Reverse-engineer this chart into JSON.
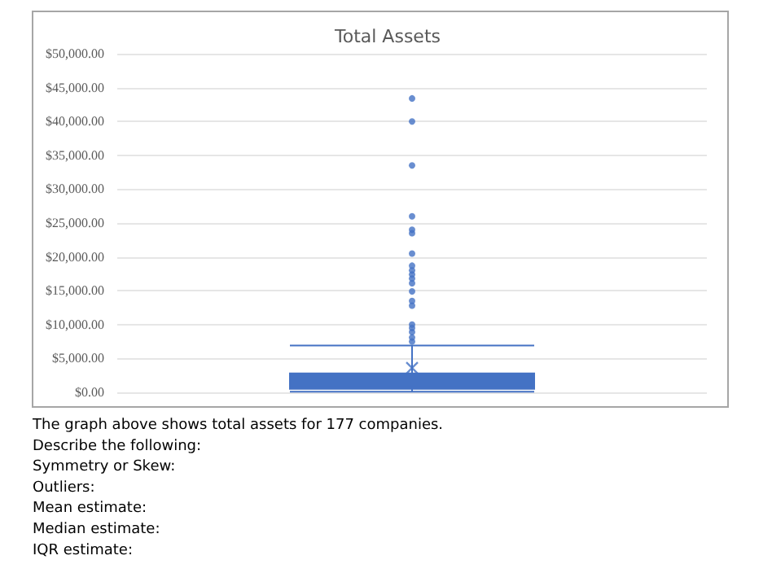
{
  "chart_data": {
    "type": "box",
    "title": "Total Assets",
    "categories": [
      null
    ],
    "series": [
      {
        "color": "#4472c4",
        "boxes": [
          {
            "low": 100,
            "q1": 500,
            "median": 800,
            "q3": 2800,
            "high": 6900,
            "mean": 3600,
            "outliers": [
              43400,
              40000,
              33500,
              26000,
              24000,
              23500,
              20500,
              18700,
              18000,
              17400,
              16800,
              16100,
              14900,
              13500,
              12800,
              10000,
              9500,
              8900,
              8100,
              7500
            ]
          }
        ]
      }
    ],
    "ylim": [
      0,
      50000
    ],
    "yticks": [
      {
        "value": 0,
        "label": "$0.00"
      },
      {
        "value": 5000,
        "label": "$5,000.00"
      },
      {
        "value": 10000,
        "label": "$10,000.00"
      },
      {
        "value": 15000,
        "label": "$15,000.00"
      },
      {
        "value": 20000,
        "label": "$20,000.00"
      },
      {
        "value": 25000,
        "label": "$25,000.00"
      },
      {
        "value": 30000,
        "label": "$30,000.00"
      },
      {
        "value": 35000,
        "label": "$35,000.00"
      },
      {
        "value": 40000,
        "label": "$40,000.00"
      },
      {
        "value": 45000,
        "label": "$45,000.00"
      },
      {
        "value": 50000,
        "label": "$50,000.00"
      }
    ],
    "grid": "y",
    "marker": "circle",
    "annotations": [
      "The graph above shows total assets for 177 companies.",
      "Describe the following:",
      "Symmetry or Skew:",
      "Outliers:",
      "Mean estimate:",
      "Median estimate:",
      "IQR estimate:"
    ]
  }
}
